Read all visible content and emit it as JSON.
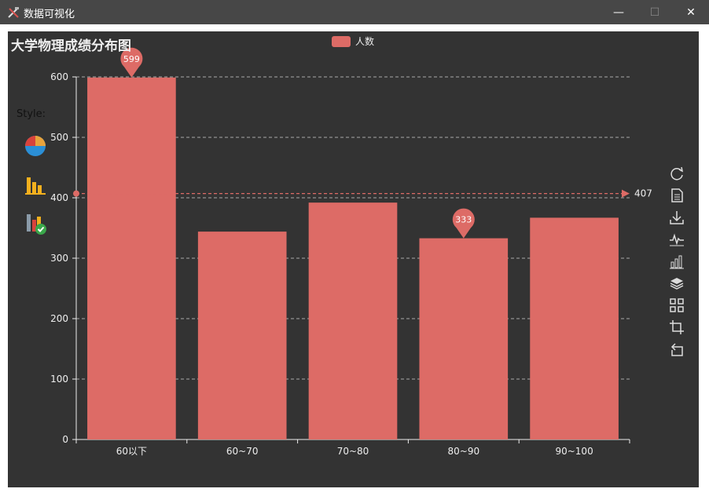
{
  "window": {
    "title": "数据可视化",
    "controls": {
      "minimize": "—",
      "maximize": "☐",
      "close": "✕"
    }
  },
  "panel": {
    "style_label": "Style:",
    "style_icons": [
      "pie-chart-icon",
      "bar-chart-icon",
      "bar-chart-check-icon"
    ]
  },
  "toolbox": [
    "refresh-icon",
    "data-view-icon",
    "save-image-icon",
    "line-chart-icon",
    "bar-chart-icon",
    "stack-icon",
    "tiled-icon",
    "data-zoom-icon",
    "zoom-reset-icon"
  ],
  "colors": {
    "series": "#dd6b66",
    "background": "#333333",
    "axis": "#eeeeee"
  },
  "chart_data": {
    "type": "bar",
    "title": "大学物理成绩分布图",
    "categories": [
      "60以下",
      "60~70",
      "70~80",
      "80~90",
      "90~100"
    ],
    "series": [
      {
        "name": "人数",
        "values": [
          599,
          344,
          392,
          333,
          367
        ]
      }
    ],
    "ylim": [
      0,
      600
    ],
    "yticks": [
      0,
      100,
      200,
      300,
      400,
      500,
      600
    ],
    "grid": "dashed horizontal",
    "legend": "top-center",
    "mark_points": [
      {
        "category": "60以下",
        "value": 599,
        "label": "599"
      },
      {
        "category": "80~90",
        "value": 333,
        "label": "333"
      }
    ],
    "mark_line": {
      "value": 407,
      "label": "407"
    }
  }
}
